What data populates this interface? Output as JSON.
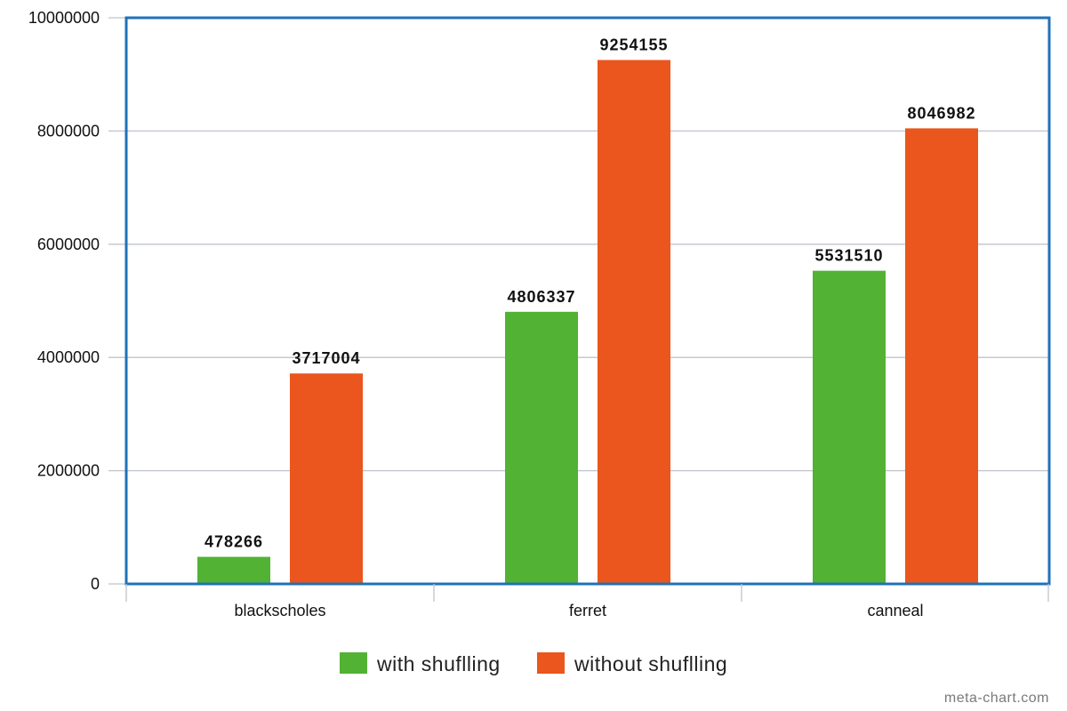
{
  "chart_data": {
    "type": "bar",
    "categories": [
      "blackscholes",
      "ferret",
      "canneal"
    ],
    "series": [
      {
        "name": "with shuflling",
        "color": "#52b233",
        "values": [
          478266,
          4806337,
          5531510
        ]
      },
      {
        "name": "without shuflling",
        "color": "#ea561d",
        "values": [
          3717004,
          9254155,
          8046982
        ]
      }
    ],
    "data_labels": [
      [
        "478266",
        "4806337",
        "5531510"
      ],
      [
        "3717004",
        "9254155",
        "8046982"
      ]
    ],
    "yticks": [
      "0",
      "2000000",
      "4000000",
      "6000000",
      "8000000",
      "10000000"
    ],
    "ylim": [
      0,
      10000000
    ],
    "grid": true,
    "legend_position": "bottom",
    "frame_color": "#1f72b8",
    "grid_color": "#c0c4cc"
  },
  "watermark": "meta-chart.com"
}
